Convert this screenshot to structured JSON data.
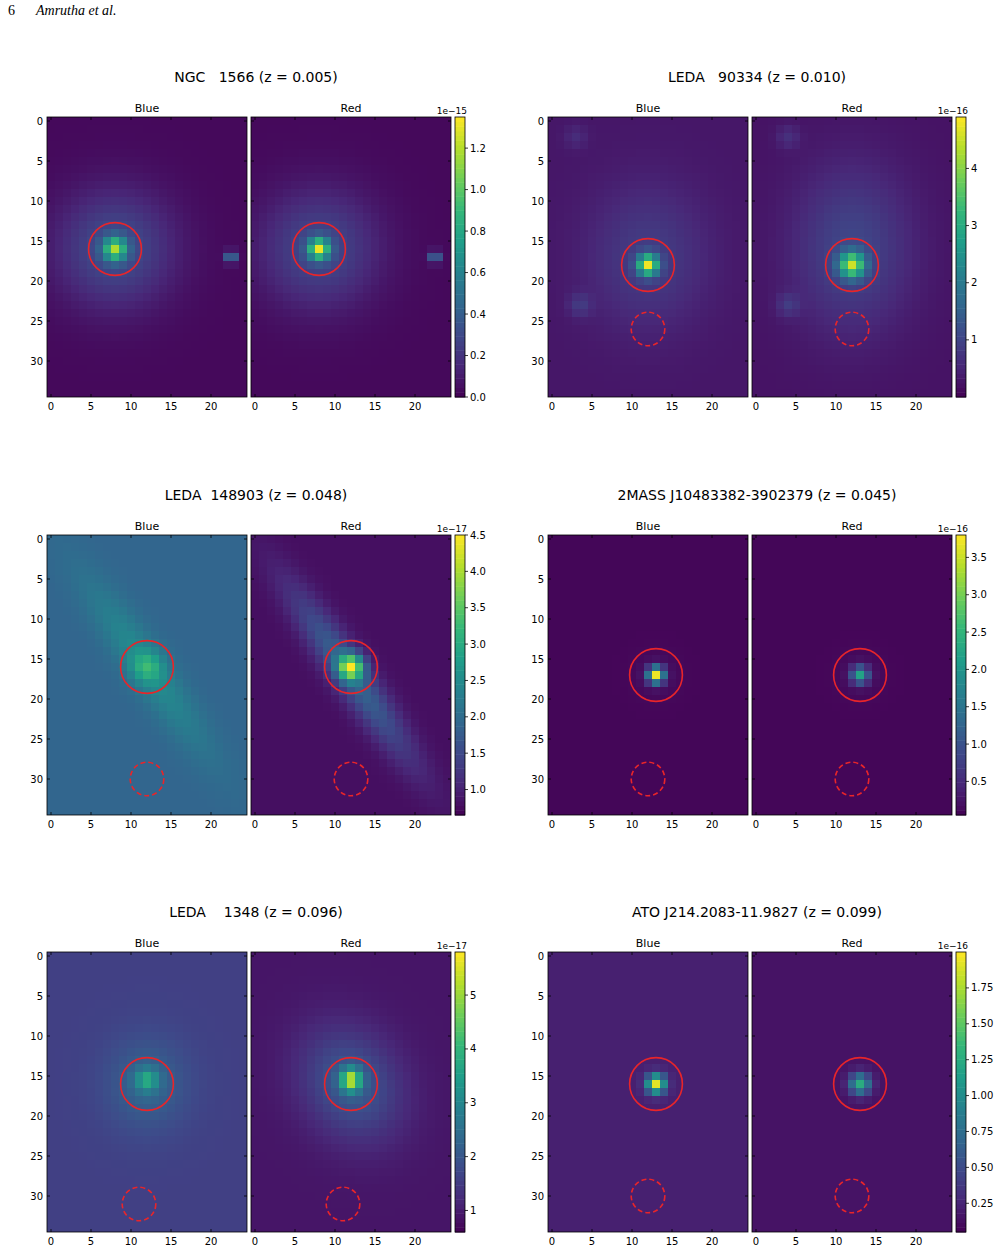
{
  "header": {
    "page": "6",
    "authors": "Amrutha et al."
  },
  "chart_data": [
    {
      "type": "heatmap",
      "title": "NGC   1566 (z = 0.005)",
      "xlim": [
        -0.5,
        24.5
      ],
      "ylim": [
        34.5,
        -0.5
      ],
      "xticks": [
        0,
        5,
        10,
        15,
        20
      ],
      "yticks": [
        0,
        5,
        10,
        15,
        20,
        25,
        30
      ],
      "colorbar": {
        "range": [
          0,
          1.35
        ],
        "ticks": [
          {
            "value": 0,
            "label": "0.0"
          },
          0.2,
          0.4,
          0.6,
          0.8,
          {
            "value": 1,
            "label": "1.0"
          },
          1.2
        ],
        "offset_label": "1e−15"
      },
      "images": [
        {
          "label": "Blue",
          "background": 0.03,
          "sources": [
            {
              "x": 8,
              "y": 16,
              "peak": 0.3,
              "sigma_x": 5,
              "sigma_y": 5
            },
            {
              "x": 8,
              "y": 16,
              "peak": 0.85,
              "sigma_x": 1.0,
              "sigma_y": 1.0
            },
            {
              "x": 22.5,
              "y": 17,
              "peak": 0.55,
              "sigma_x": 0.5,
              "sigma_y": 0.5
            }
          ]
        },
        {
          "label": "Red",
          "background": 0.03,
          "sources": [
            {
              "x": 8,
              "y": 16,
              "peak": 0.28,
              "sigma_x": 5,
              "sigma_y": 5
            },
            {
              "x": 8,
              "y": 16,
              "peak": 1.0,
              "sigma_x": 0.9,
              "sigma_y": 0.9
            },
            {
              "x": 22.5,
              "y": 17,
              "peak": 0.5,
              "sigma_x": 0.5,
              "sigma_y": 0.5
            }
          ]
        }
      ],
      "apertures": [
        {
          "x": 8,
          "y": 16,
          "radius": 3.3,
          "line_style": "solid"
        }
      ]
    },
    {
      "type": "heatmap",
      "title": "LEDA   90334 (z = 0.010)",
      "xlim": [
        -0.5,
        24.5
      ],
      "ylim": [
        34.5,
        -0.5
      ],
      "xticks": [
        0,
        5,
        10,
        15,
        20
      ],
      "yticks": [
        0,
        5,
        10,
        15,
        20,
        25,
        30
      ],
      "colorbar": {
        "range": [
          0,
          4.9
        ],
        "ticks": [
          1,
          2,
          3,
          4
        ],
        "offset_label": "1e−16"
      },
      "images": [
        {
          "label": "Blue",
          "background": 0.3,
          "sources": [
            {
              "x": 12,
              "y": 17,
              "peak": 0.6,
              "sigma_x": 5,
              "sigma_y": 6
            },
            {
              "x": 12,
              "y": 18,
              "peak": 3.9,
              "sigma_x": 0.9,
              "sigma_y": 0.9
            },
            {
              "x": 3.5,
              "y": 23,
              "peak": 0.5,
              "sigma_x": 1,
              "sigma_y": 1
            },
            {
              "x": 3,
              "y": 2,
              "peak": 0.3,
              "sigma_x": 1,
              "sigma_y": 1
            }
          ]
        },
        {
          "label": "Red",
          "background": 0.25,
          "sources": [
            {
              "x": 12,
              "y": 16,
              "peak": 0.8,
              "sigma_x": 5,
              "sigma_y": 7
            },
            {
              "x": 12,
              "y": 18,
              "peak": 3.5,
              "sigma_x": 1.1,
              "sigma_y": 1.1
            },
            {
              "x": 4,
              "y": 23,
              "peak": 0.5,
              "sigma_x": 1,
              "sigma_y": 1
            },
            {
              "x": 4,
              "y": 2,
              "peak": 0.4,
              "sigma_x": 1,
              "sigma_y": 1
            }
          ]
        }
      ],
      "apertures": [
        {
          "x": 12,
          "y": 18,
          "radius": 3.3,
          "line_style": "solid"
        },
        {
          "x": 12,
          "y": 26,
          "radius": 2.1,
          "line_style": "dashed"
        }
      ]
    },
    {
      "type": "heatmap",
      "title": "LEDA  148903 (z = 0.048)",
      "xlim": [
        -0.5,
        24.5
      ],
      "ylim": [
        34.5,
        -0.5
      ],
      "xticks": [
        0,
        5,
        10,
        15,
        20
      ],
      "yticks": [
        0,
        5,
        10,
        15,
        20,
        25,
        30
      ],
      "colorbar": {
        "range": [
          0.65,
          4.5
        ],
        "ticks": [
          {
            "value": 1,
            "label": "1.0"
          },
          1.5,
          {
            "value": 2,
            "label": "2.0"
          },
          2.5,
          {
            "value": 3,
            "label": "3.0"
          },
          3.5,
          {
            "value": 4,
            "label": "4.0"
          },
          4.5
        ],
        "offset_label": "1e−17"
      },
      "images": [
        {
          "label": "Blue",
          "background": 1.9,
          "sources": [
            {
              "x": 12,
              "y": 16,
              "peak": 0.6,
              "sigma_x": 9,
              "sigma_y": 1.8,
              "angle": 55
            },
            {
              "x": 12,
              "y": 16,
              "peak": 0.8,
              "sigma_x": 1.3,
              "sigma_y": 1.3
            }
          ]
        },
        {
          "label": "Red",
          "background": 0.8,
          "sources": [
            {
              "x": 12,
              "y": 17,
              "peak": 1.1,
              "sigma_x": 9,
              "sigma_y": 1.6,
              "angle": 55
            },
            {
              "x": 12,
              "y": 16,
              "peak": 2.7,
              "sigma_x": 1.1,
              "sigma_y": 1.1
            }
          ]
        }
      ],
      "apertures": [
        {
          "x": 12,
          "y": 16,
          "radius": 3.3,
          "line_style": "solid"
        },
        {
          "x": 12,
          "y": 30,
          "radius": 2.1,
          "line_style": "dashed"
        }
      ]
    },
    {
      "type": "heatmap",
      "title": "2MASS J10483382-3902379 (z = 0.045)",
      "xlim": [
        -0.5,
        24.5
      ],
      "ylim": [
        34.5,
        -0.5
      ],
      "xticks": [
        0,
        5,
        10,
        15,
        20
      ],
      "yticks": [
        0,
        5,
        10,
        15,
        20,
        25,
        30
      ],
      "colorbar": {
        "range": [
          0.05,
          3.8
        ],
        "ticks": [
          0.5,
          {
            "value": 1,
            "label": "1.0"
          },
          1.5,
          {
            "value": 2,
            "label": "2.0"
          },
          2.5,
          {
            "value": 3,
            "label": "3.0"
          },
          3.5
        ],
        "offset_label": "1e−16"
      },
      "images": [
        {
          "label": "Blue",
          "background": 0.1,
          "sources": [
            {
              "x": 13,
              "y": 17,
              "peak": 0.1,
              "sigma_x": 2,
              "sigma_y": 2
            },
            {
              "x": 13,
              "y": 17,
              "peak": 3.5,
              "sigma_x": 0.7,
              "sigma_y": 0.7
            }
          ]
        },
        {
          "label": "Red",
          "background": 0.1,
          "sources": [
            {
              "x": 13,
              "y": 17,
              "peak": 0.1,
              "sigma_x": 2,
              "sigma_y": 2
            },
            {
              "x": 13,
              "y": 17,
              "peak": 2.0,
              "sigma_x": 0.75,
              "sigma_y": 0.75
            }
          ]
        }
      ],
      "apertures": [
        {
          "x": 13,
          "y": 17,
          "radius": 3.3,
          "line_style": "solid"
        },
        {
          "x": 12,
          "y": 30,
          "radius": 2.1,
          "line_style": "dashed"
        }
      ]
    },
    {
      "type": "heatmap",
      "title": "LEDA    1348 (z = 0.096)",
      "xlim": [
        -0.5,
        24.5
      ],
      "ylim": [
        34.5,
        -0.5
      ],
      "xticks": [
        0,
        5,
        10,
        15,
        20
      ],
      "yticks": [
        0,
        5,
        10,
        15,
        20,
        25,
        30
      ],
      "colorbar": {
        "range": [
          0.6,
          5.8
        ],
        "ticks": [
          1,
          2,
          3,
          4,
          5
        ],
        "offset_label": "1e−17"
      },
      "images": [
        {
          "label": "Blue",
          "background": 1.6,
          "sources": [
            {
              "x": 12,
              "y": 16,
              "peak": 0.7,
              "sigma_x": 3.5,
              "sigma_y": 4
            },
            {
              "x": 12,
              "y": 15.5,
              "peak": 1.6,
              "sigma_x": 1,
              "sigma_y": 1
            }
          ]
        },
        {
          "label": "Red",
          "background": 0.9,
          "sources": [
            {
              "x": 12,
              "y": 16,
              "peak": 1.2,
              "sigma_x": 5,
              "sigma_y": 4,
              "angle": 60
            },
            {
              "x": 12,
              "y": 15.5,
              "peak": 3.4,
              "sigma_x": 0.9,
              "sigma_y": 1
            }
          ]
        }
      ],
      "apertures": [
        {
          "x": 12,
          "y": 16,
          "radius": 3.3,
          "line_style": "solid"
        },
        {
          "x": 11,
          "y": 31,
          "radius": 2.1,
          "line_style": "dashed"
        }
      ]
    },
    {
      "type": "heatmap",
      "title": "ATO J214.2083-11.9827 (z = 0.099)",
      "xlim": [
        -0.5,
        24.5
      ],
      "ylim": [
        34.5,
        -0.5
      ],
      "xticks": [
        0,
        5,
        10,
        15,
        20
      ],
      "yticks": [
        0,
        5,
        10,
        15,
        20,
        25,
        30
      ],
      "colorbar": {
        "range": [
          0.05,
          2.0
        ],
        "ticks": [
          0.25,
          {
            "value": 0.5,
            "label": "0.50"
          },
          0.75,
          {
            "value": 1,
            "label": "1.00"
          },
          1.25,
          {
            "value": 1.5,
            "label": "1.50"
          },
          1.75
        ],
        "offset_label": "1e−16"
      },
      "images": [
        {
          "label": "Blue",
          "background": 0.22,
          "sources": [
            {
              "x": 13,
              "y": 16,
              "peak": 1.7,
              "sigma_x": 0.8,
              "sigma_y": 0.8
            }
          ]
        },
        {
          "label": "Red",
          "background": 0.15,
          "sources": [
            {
              "x": 13,
              "y": 16,
              "peak": 1.1,
              "sigma_x": 0.9,
              "sigma_y": 0.9
            }
          ]
        }
      ],
      "apertures": [
        {
          "x": 13,
          "y": 16,
          "radius": 3.3,
          "line_style": "solid"
        },
        {
          "x": 12,
          "y": 30,
          "radius": 2.1,
          "line_style": "dashed"
        }
      ]
    }
  ]
}
